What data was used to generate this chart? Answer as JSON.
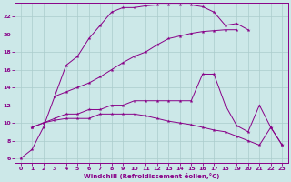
{
  "xlabel": "Windchill (Refroidissement éolien,°C)",
  "bg_color": "#cce8e8",
  "line_color": "#880088",
  "grid_color": "#aacccc",
  "xlim": [
    -0.5,
    23.5
  ],
  "ylim": [
    5.5,
    23.5
  ],
  "xticks": [
    0,
    1,
    2,
    3,
    4,
    5,
    6,
    7,
    8,
    9,
    10,
    11,
    12,
    13,
    14,
    15,
    16,
    17,
    18,
    19,
    20,
    21,
    22,
    23
  ],
  "yticks": [
    6,
    8,
    10,
    12,
    14,
    16,
    18,
    20,
    22
  ],
  "curve1_x": [
    0,
    1,
    2,
    3,
    4,
    5,
    6,
    7,
    8,
    9,
    10,
    11,
    12,
    13,
    14,
    15,
    16,
    17,
    18,
    19,
    20
  ],
  "curve1_y": [
    6,
    7,
    9.5,
    13,
    16.5,
    17.5,
    19.5,
    21,
    22.5,
    23,
    23,
    23.2,
    23.3,
    23.3,
    23.3,
    23.3,
    23.1,
    22.5,
    21,
    21.2,
    20.5
  ],
  "curve2_x": [
    3,
    4,
    5,
    6,
    7,
    8,
    9,
    10,
    11,
    12,
    13,
    14,
    15,
    16,
    17,
    18,
    19
  ],
  "curve2_y": [
    13,
    13.5,
    14,
    14.5,
    15.2,
    16,
    16.8,
    17.5,
    18,
    18.8,
    19.5,
    19.8,
    20.1,
    20.3,
    20.4,
    20.5,
    20.5
  ],
  "curve3_x": [
    1,
    2,
    3,
    4,
    5,
    6,
    7,
    8,
    9,
    10,
    11,
    12,
    13,
    14,
    15,
    16,
    17,
    18,
    19,
    20,
    21,
    22,
    23
  ],
  "curve3_y": [
    9.5,
    10.0,
    10.5,
    11.0,
    11.0,
    11.5,
    11.5,
    12.0,
    12.0,
    12.5,
    12.5,
    12.5,
    12.5,
    12.5,
    12.5,
    15.5,
    15.5,
    12.0,
    9.7,
    9.0,
    12.0,
    9.5,
    7.5
  ],
  "curve4_x": [
    1,
    2,
    3,
    4,
    5,
    6,
    7,
    8,
    9,
    10,
    11,
    12,
    13,
    14,
    15,
    16,
    17,
    18,
    19,
    20,
    21,
    22,
    23
  ],
  "curve4_y": [
    9.5,
    10.0,
    10.3,
    10.5,
    10.5,
    10.5,
    11.0,
    11.0,
    11.0,
    11.0,
    10.8,
    10.5,
    10.2,
    10.0,
    9.8,
    9.5,
    9.2,
    9.0,
    8.5,
    8.0,
    7.5,
    9.5,
    7.5
  ]
}
